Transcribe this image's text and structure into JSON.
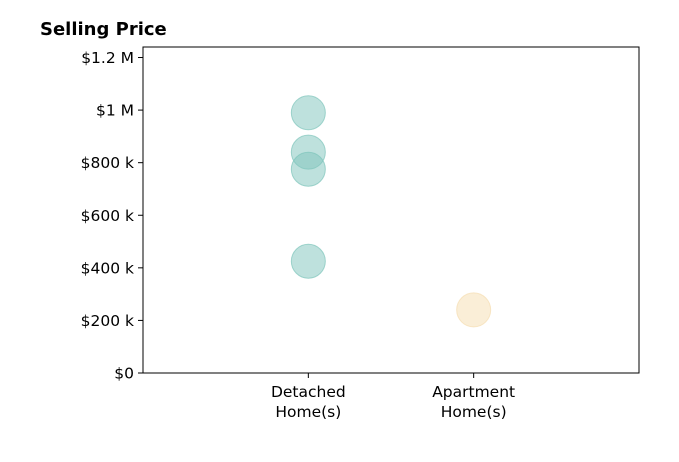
{
  "chart_data": {
    "type": "scatter",
    "title": "Selling Price",
    "xlabel": "",
    "ylabel": "",
    "categories": [
      "Detached\nHome(s)",
      "Apartment\nHome(s)"
    ],
    "xlim": [
      0,
      3
    ],
    "ylim": [
      0,
      1240000
    ],
    "yticks": [
      {
        "value": 0,
        "label": "$0"
      },
      {
        "value": 200000,
        "label": "$200 k"
      },
      {
        "value": 400000,
        "label": "$400 k"
      },
      {
        "value": 600000,
        "label": "$600 k"
      },
      {
        "value": 800000,
        "label": "$800 k"
      },
      {
        "value": 1000000,
        "label": "$1 M"
      },
      {
        "value": 1200000,
        "label": "$1.2 M"
      }
    ],
    "grid": false,
    "series": [
      {
        "category": "Detached\nHome(s)",
        "color": "#7dc4bb",
        "values": [
          990000,
          840000,
          775000,
          425000
        ]
      },
      {
        "category": "Apartment\nHome(s)",
        "color": "#f5ddb0",
        "values": [
          240000
        ]
      }
    ]
  }
}
